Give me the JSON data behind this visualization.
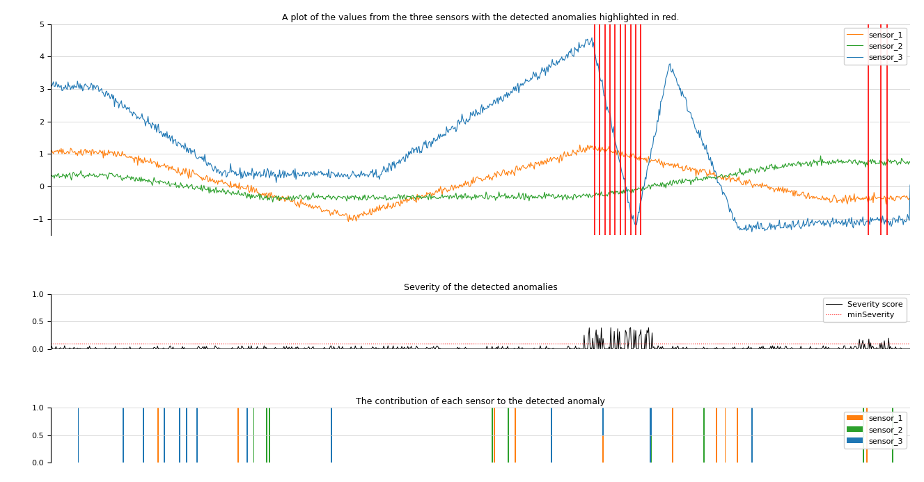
{
  "title_main": "A plot of the values from the three sensors with the detected anomalies highlighted in red.",
  "title_severity": "Severity of the detected anomalies",
  "title_contribution": "The contribution of each sensor to the detected anomaly",
  "sensor_colors": {
    "sensor_1": "#ff7f0e",
    "sensor_2": "#2ca02c",
    "sensor_3": "#1f77b4"
  },
  "anomaly_line_color": "red",
  "severity_line_color": "black",
  "min_severity_color": "red",
  "min_severity_style": "dotted",
  "min_severity_value": 0.1,
  "ylim_main": [
    -1.5,
    5.0
  ],
  "ylim_severity": [
    0.0,
    1.0
  ],
  "ylim_contribution": [
    0.0,
    1.0
  ],
  "n_points": 1000,
  "figwidth": 13.27,
  "figheight": 6.93,
  "dpi": 100
}
